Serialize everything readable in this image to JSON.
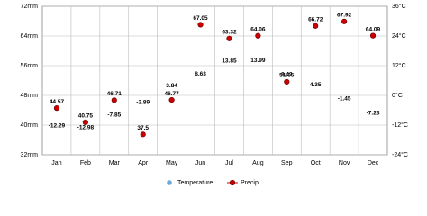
{
  "chart_data": {
    "type": "line",
    "categories": [
      "Jan",
      "Feb",
      "Mar",
      "Apr",
      "May",
      "Jun",
      "Jul",
      "Aug",
      "Sep",
      "Oct",
      "Nov",
      "Dec"
    ],
    "series": [
      {
        "name": "Temperature",
        "color": "#6fa8dc",
        "axis": "y2",
        "values": [
          -12.29,
          -12.98,
          -7.85,
          -2.89,
          3.84,
          8.63,
          13.85,
          13.99,
          8.42,
          4.35,
          -1.45,
          -7.23
        ]
      },
      {
        "name": "Precip",
        "color": "#cc0000",
        "values": [
          44.57,
          40.75,
          46.71,
          37.5,
          46.77,
          67.05,
          63.32,
          64.06,
          51.65,
          66.72,
          67.92,
          64.09
        ]
      }
    ],
    "ylim": [
      32,
      72
    ],
    "yticks": [
      {
        "value": 32,
        "label": "32mm"
      },
      {
        "value": 40,
        "label": "40mm"
      },
      {
        "value": 48,
        "label": "48mm"
      },
      {
        "value": 56,
        "label": "56mm"
      },
      {
        "value": 64,
        "label": "64mm"
      },
      {
        "value": 72,
        "label": "72mm"
      }
    ],
    "y2lim": [
      -24,
      36
    ],
    "y2ticks": [
      {
        "value": -24,
        "label": "-24°C"
      },
      {
        "value": -12,
        "label": "-12°C"
      },
      {
        "value": 0,
        "label": "0°C"
      },
      {
        "value": 12,
        "label": "12°C"
      },
      {
        "value": 24,
        "label": "24°C"
      },
      {
        "value": 36,
        "label": "36°C"
      }
    ],
    "grid": true
  }
}
